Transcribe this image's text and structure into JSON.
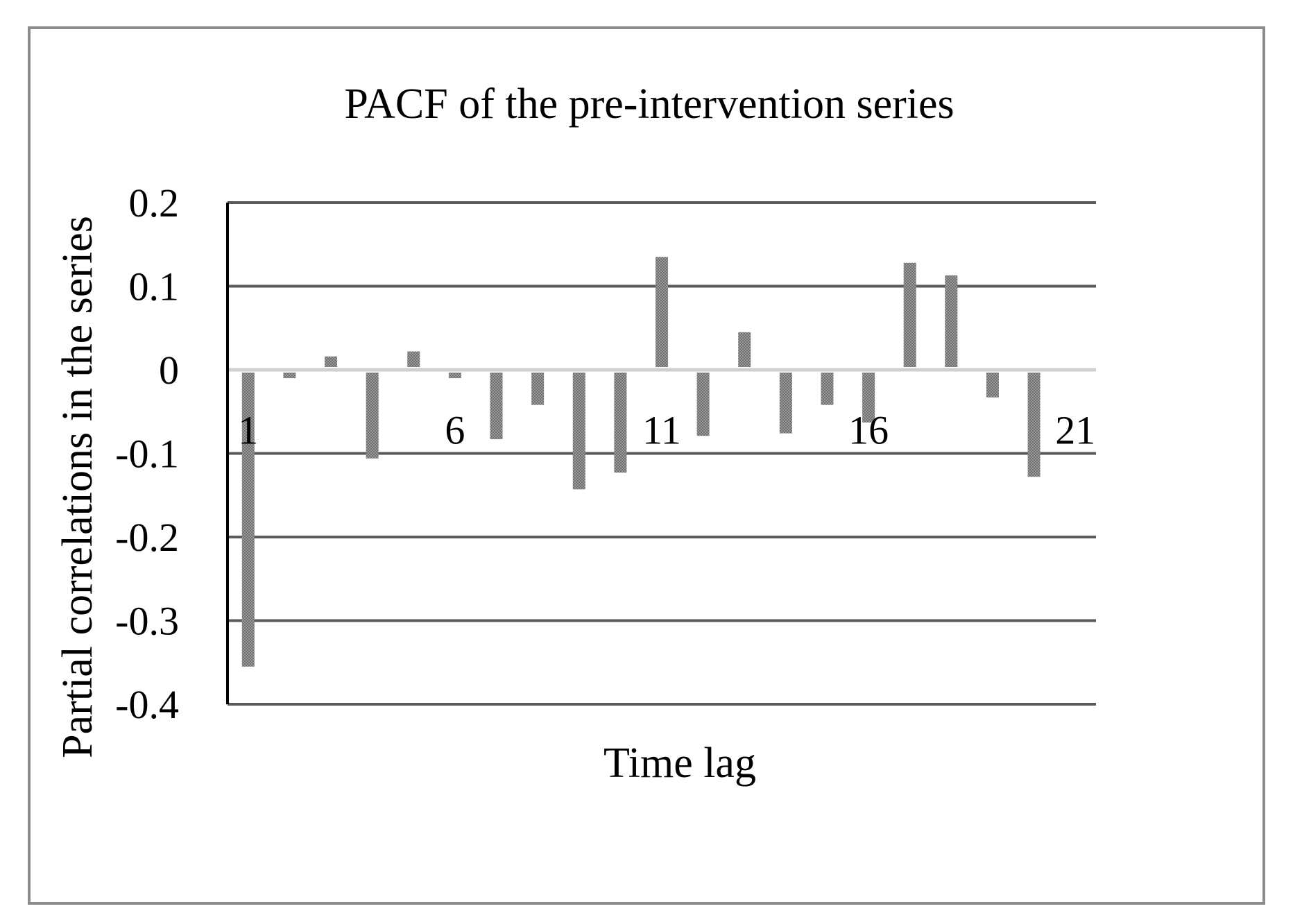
{
  "chart_data": {
    "type": "bar",
    "title": "PACF of the pre-intervention series",
    "xlabel": "Time lag",
    "ylabel": "Partial correlations in the series",
    "ylim": [
      -0.4,
      0.2
    ],
    "yticks": [
      "0.2",
      "0.1",
      "0",
      "-0.1",
      "-0.2",
      "-0.3",
      "-0.4"
    ],
    "categories": [
      "1",
      "2",
      "3",
      "4",
      "5",
      "6",
      "7",
      "8",
      "9",
      "10",
      "11",
      "12",
      "13",
      "14",
      "15",
      "16",
      "17",
      "18",
      "19",
      "20",
      "21"
    ],
    "x_tick_labels_shown": [
      "1",
      "6",
      "11",
      "16",
      "21"
    ],
    "values": [
      -0.355,
      -0.01,
      0.016,
      -0.106,
      0.022,
      -0.01,
      -0.083,
      -0.042,
      -0.143,
      -0.123,
      0.135,
      -0.079,
      0.045,
      -0.076,
      -0.042,
      -0.063,
      0.128,
      0.113,
      -0.033,
      -0.128,
      0.0
    ],
    "grid": true,
    "legend": "none",
    "colors": {
      "bar": "#8a8a8a",
      "gridline": "#5a5a5a",
      "zero_line": "#cfcfcf",
      "axis": "#000000",
      "frame": "#8c8c8c"
    }
  }
}
